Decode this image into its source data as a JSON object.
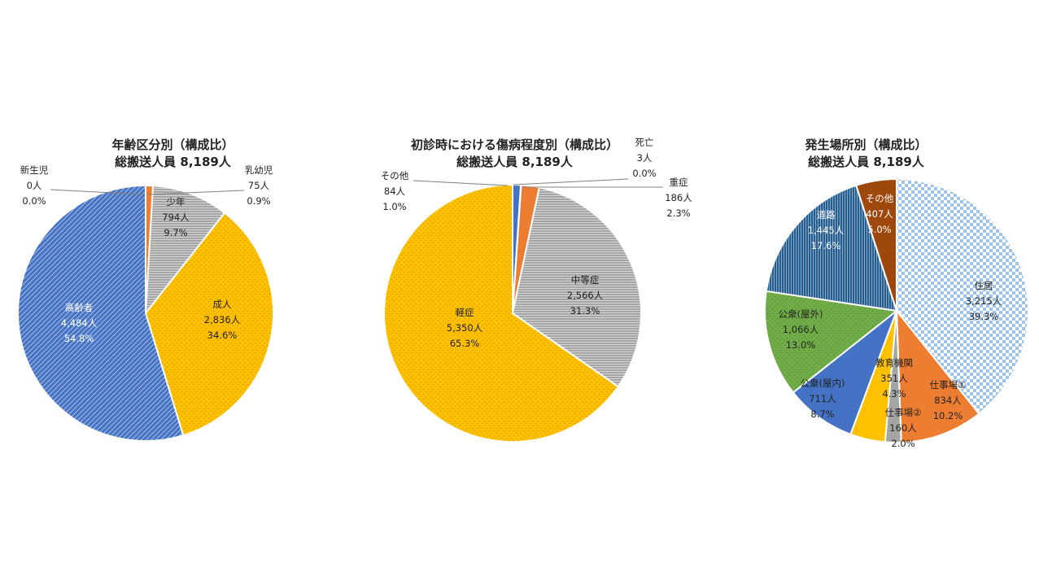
{
  "chart_data": [
    {
      "type": "pie",
      "title_line1": "年齢区分別（構成比）",
      "title_line2": "総搬送人員 8,189人",
      "slices": [
        {
          "name": "新生児",
          "count_label": "0人",
          "pct_label": "0.0%",
          "value": 0,
          "color": "#7f7f7f",
          "pattern": "none"
        },
        {
          "name": "乳幼児",
          "count_label": "75人",
          "pct_label": "0.9%",
          "value": 75,
          "color": "#ed7d31",
          "pattern": "none"
        },
        {
          "name": "少年",
          "count_label": "794人",
          "pct_label": "9.7%",
          "value": 794,
          "color": "#a5a5a5",
          "pattern": "hlines"
        },
        {
          "name": "成人",
          "count_label": "2,836人",
          "pct_label": "34.6%",
          "value": 2836,
          "color": "#ffc000",
          "pattern": "dots"
        },
        {
          "name": "高齢者",
          "count_label": "4,484人",
          "pct_label": "54.8%",
          "value": 4484,
          "color": "#4472c4",
          "pattern": "diag"
        }
      ]
    },
    {
      "type": "pie",
      "title_line1": "初診時における傷病程度別（構成比）",
      "title_line2": "総搬送人員 8,189人",
      "slices": [
        {
          "name": "その他",
          "count_label": "84人",
          "pct_label": "1.0%",
          "value": 84,
          "color": "#4472c4",
          "pattern": "none"
        },
        {
          "name": "死亡",
          "count_label": "3人",
          "pct_label": "0.0%",
          "value": 3,
          "color": "#7f7f7f",
          "pattern": "none"
        },
        {
          "name": "重症",
          "count_label": "186人",
          "pct_label": "2.3%",
          "value": 186,
          "color": "#ed7d31",
          "pattern": "none"
        },
        {
          "name": "中等症",
          "count_label": "2,566人",
          "pct_label": "31.3%",
          "value": 2566,
          "color": "#a5a5a5",
          "pattern": "hlines"
        },
        {
          "name": "軽症",
          "count_label": "5,350人",
          "pct_label": "65.3%",
          "value": 5350,
          "color": "#ffc000",
          "pattern": "dots"
        }
      ]
    },
    {
      "type": "pie",
      "title_line1": "発生場所別（構成比）",
      "title_line2": "総搬送人員 8,189人",
      "slices": [
        {
          "name": "住居",
          "count_label": "3,215人",
          "pct_label": "39.3%",
          "value": 3215,
          "color": "#9dc3e6",
          "pattern": "checker"
        },
        {
          "name": "仕事場①",
          "count_label": "834人",
          "pct_label": "10.2%",
          "value": 834,
          "color": "#ed7d31",
          "pattern": "none"
        },
        {
          "name": "仕事場②",
          "count_label": "160人",
          "pct_label": "2.0%",
          "value": 160,
          "color": "#a5a5a5",
          "pattern": "none"
        },
        {
          "name": "教育機関",
          "count_label": "351人",
          "pct_label": "4.3%",
          "value": 351,
          "color": "#ffc000",
          "pattern": "none"
        },
        {
          "name": "公衆(屋内)",
          "count_label": "711人",
          "pct_label": "8.7%",
          "value": 711,
          "color": "#4472c4",
          "pattern": "none"
        },
        {
          "name": "公衆(屋外)",
          "count_label": "1,066人",
          "pct_label": "13.0%",
          "value": 1066,
          "color": "#70ad47",
          "pattern": "dots"
        },
        {
          "name": "道路",
          "count_label": "1,445人",
          "pct_label": "17.6%",
          "value": 1445,
          "color": "#255e91",
          "pattern": "vlines"
        },
        {
          "name": "その他",
          "count_label": "407人",
          "pct_label": "5.0%",
          "value": 407,
          "color": "#9e480e",
          "pattern": "none"
        }
      ]
    }
  ]
}
